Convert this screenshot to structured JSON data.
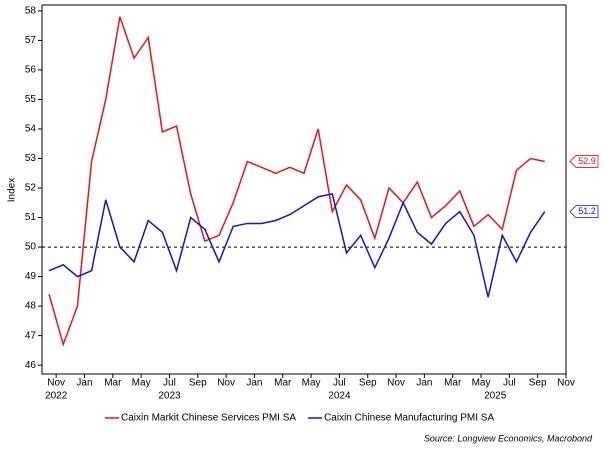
{
  "chart_data": {
    "type": "line",
    "y_label": "Index",
    "source": "Source: Longview Economics, Macrobond",
    "x": [
      "2022-10",
      "2022-11",
      "2022-12",
      "2023-01",
      "2023-02",
      "2023-03",
      "2023-04",
      "2023-05",
      "2023-06",
      "2023-07",
      "2023-08",
      "2023-09",
      "2023-10",
      "2023-11",
      "2023-12",
      "2024-01",
      "2024-02",
      "2024-03",
      "2024-04",
      "2024-05",
      "2024-06",
      "2024-07",
      "2024-08",
      "2024-09",
      "2024-10",
      "2024-11",
      "2024-12",
      "2025-01",
      "2025-02",
      "2025-03",
      "2025-04",
      "2025-05",
      "2025-06",
      "2025-07",
      "2025-08",
      "2025-09"
    ],
    "series": [
      {
        "name": "Caixin Markit Chinese Services PMI SA",
        "color": "#e8141e",
        "values": [
          48.4,
          46.7,
          48.0,
          52.9,
          55.0,
          57.8,
          56.4,
          57.1,
          53.9,
          54.1,
          51.8,
          50.2,
          50.4,
          51.5,
          52.9,
          52.7,
          52.5,
          52.7,
          52.5,
          54.0,
          51.2,
          52.1,
          51.6,
          50.3,
          52.0,
          51.5,
          52.2,
          51.0,
          51.4,
          51.9,
          50.7,
          51.1,
          50.6,
          52.6,
          53.0,
          52.9
        ]
      },
      {
        "name": "Caixin Chinese Manufacturing PMI SA",
        "color": "#1414d2",
        "values": [
          49.2,
          49.4,
          49.0,
          49.2,
          51.6,
          50.0,
          49.5,
          50.9,
          50.5,
          49.2,
          51.0,
          50.6,
          49.5,
          50.7,
          50.8,
          50.8,
          50.9,
          51.1,
          51.4,
          51.7,
          51.8,
          49.8,
          50.4,
          49.3,
          50.3,
          51.5,
          50.5,
          50.1,
          50.8,
          51.2,
          50.4,
          48.3,
          50.4,
          49.5,
          50.5,
          51.2
        ]
      }
    ],
    "xlim": [
      "2022-10",
      "2025-10"
    ],
    "xticks": [
      {
        "value": "2022-11",
        "label": "Nov"
      },
      {
        "value": "2023-01",
        "label": "Jan"
      },
      {
        "value": "2023-03",
        "label": "Mar"
      },
      {
        "value": "2023-05",
        "label": "May"
      },
      {
        "value": "2023-07",
        "label": "Jul"
      },
      {
        "value": "2023-09",
        "label": "Sep"
      },
      {
        "value": "2023-11",
        "label": "Nov"
      },
      {
        "value": "2024-01",
        "label": "Jan"
      },
      {
        "value": "2024-03",
        "label": "Mar"
      },
      {
        "value": "2024-05",
        "label": "May"
      },
      {
        "value": "2024-07",
        "label": "Jul"
      },
      {
        "value": "2024-09",
        "label": "Sep"
      },
      {
        "value": "2024-11",
        "label": "Nov"
      },
      {
        "value": "2025-01",
        "label": "Jan"
      },
      {
        "value": "2025-03",
        "label": "Mar"
      },
      {
        "value": "2025-05",
        "label": "May"
      },
      {
        "value": "2025-07",
        "label": "Jul"
      },
      {
        "value": "2025-09",
        "label": "Sep"
      },
      {
        "value": "2025-11",
        "label": "Nov"
      }
    ],
    "xtick_years": [
      {
        "value": "2022-11",
        "label": "2022"
      },
      {
        "value": "2023-07",
        "label": "2023"
      },
      {
        "value": "2024-07",
        "label": "2024"
      },
      {
        "value": "2025-06",
        "label": "2025"
      }
    ],
    "ylim": [
      45.7,
      58.2
    ],
    "yticks": [
      46,
      47,
      48,
      49,
      50,
      51,
      52,
      53,
      54,
      55,
      56,
      57,
      58
    ],
    "hline": 50,
    "legend": "bottom"
  }
}
